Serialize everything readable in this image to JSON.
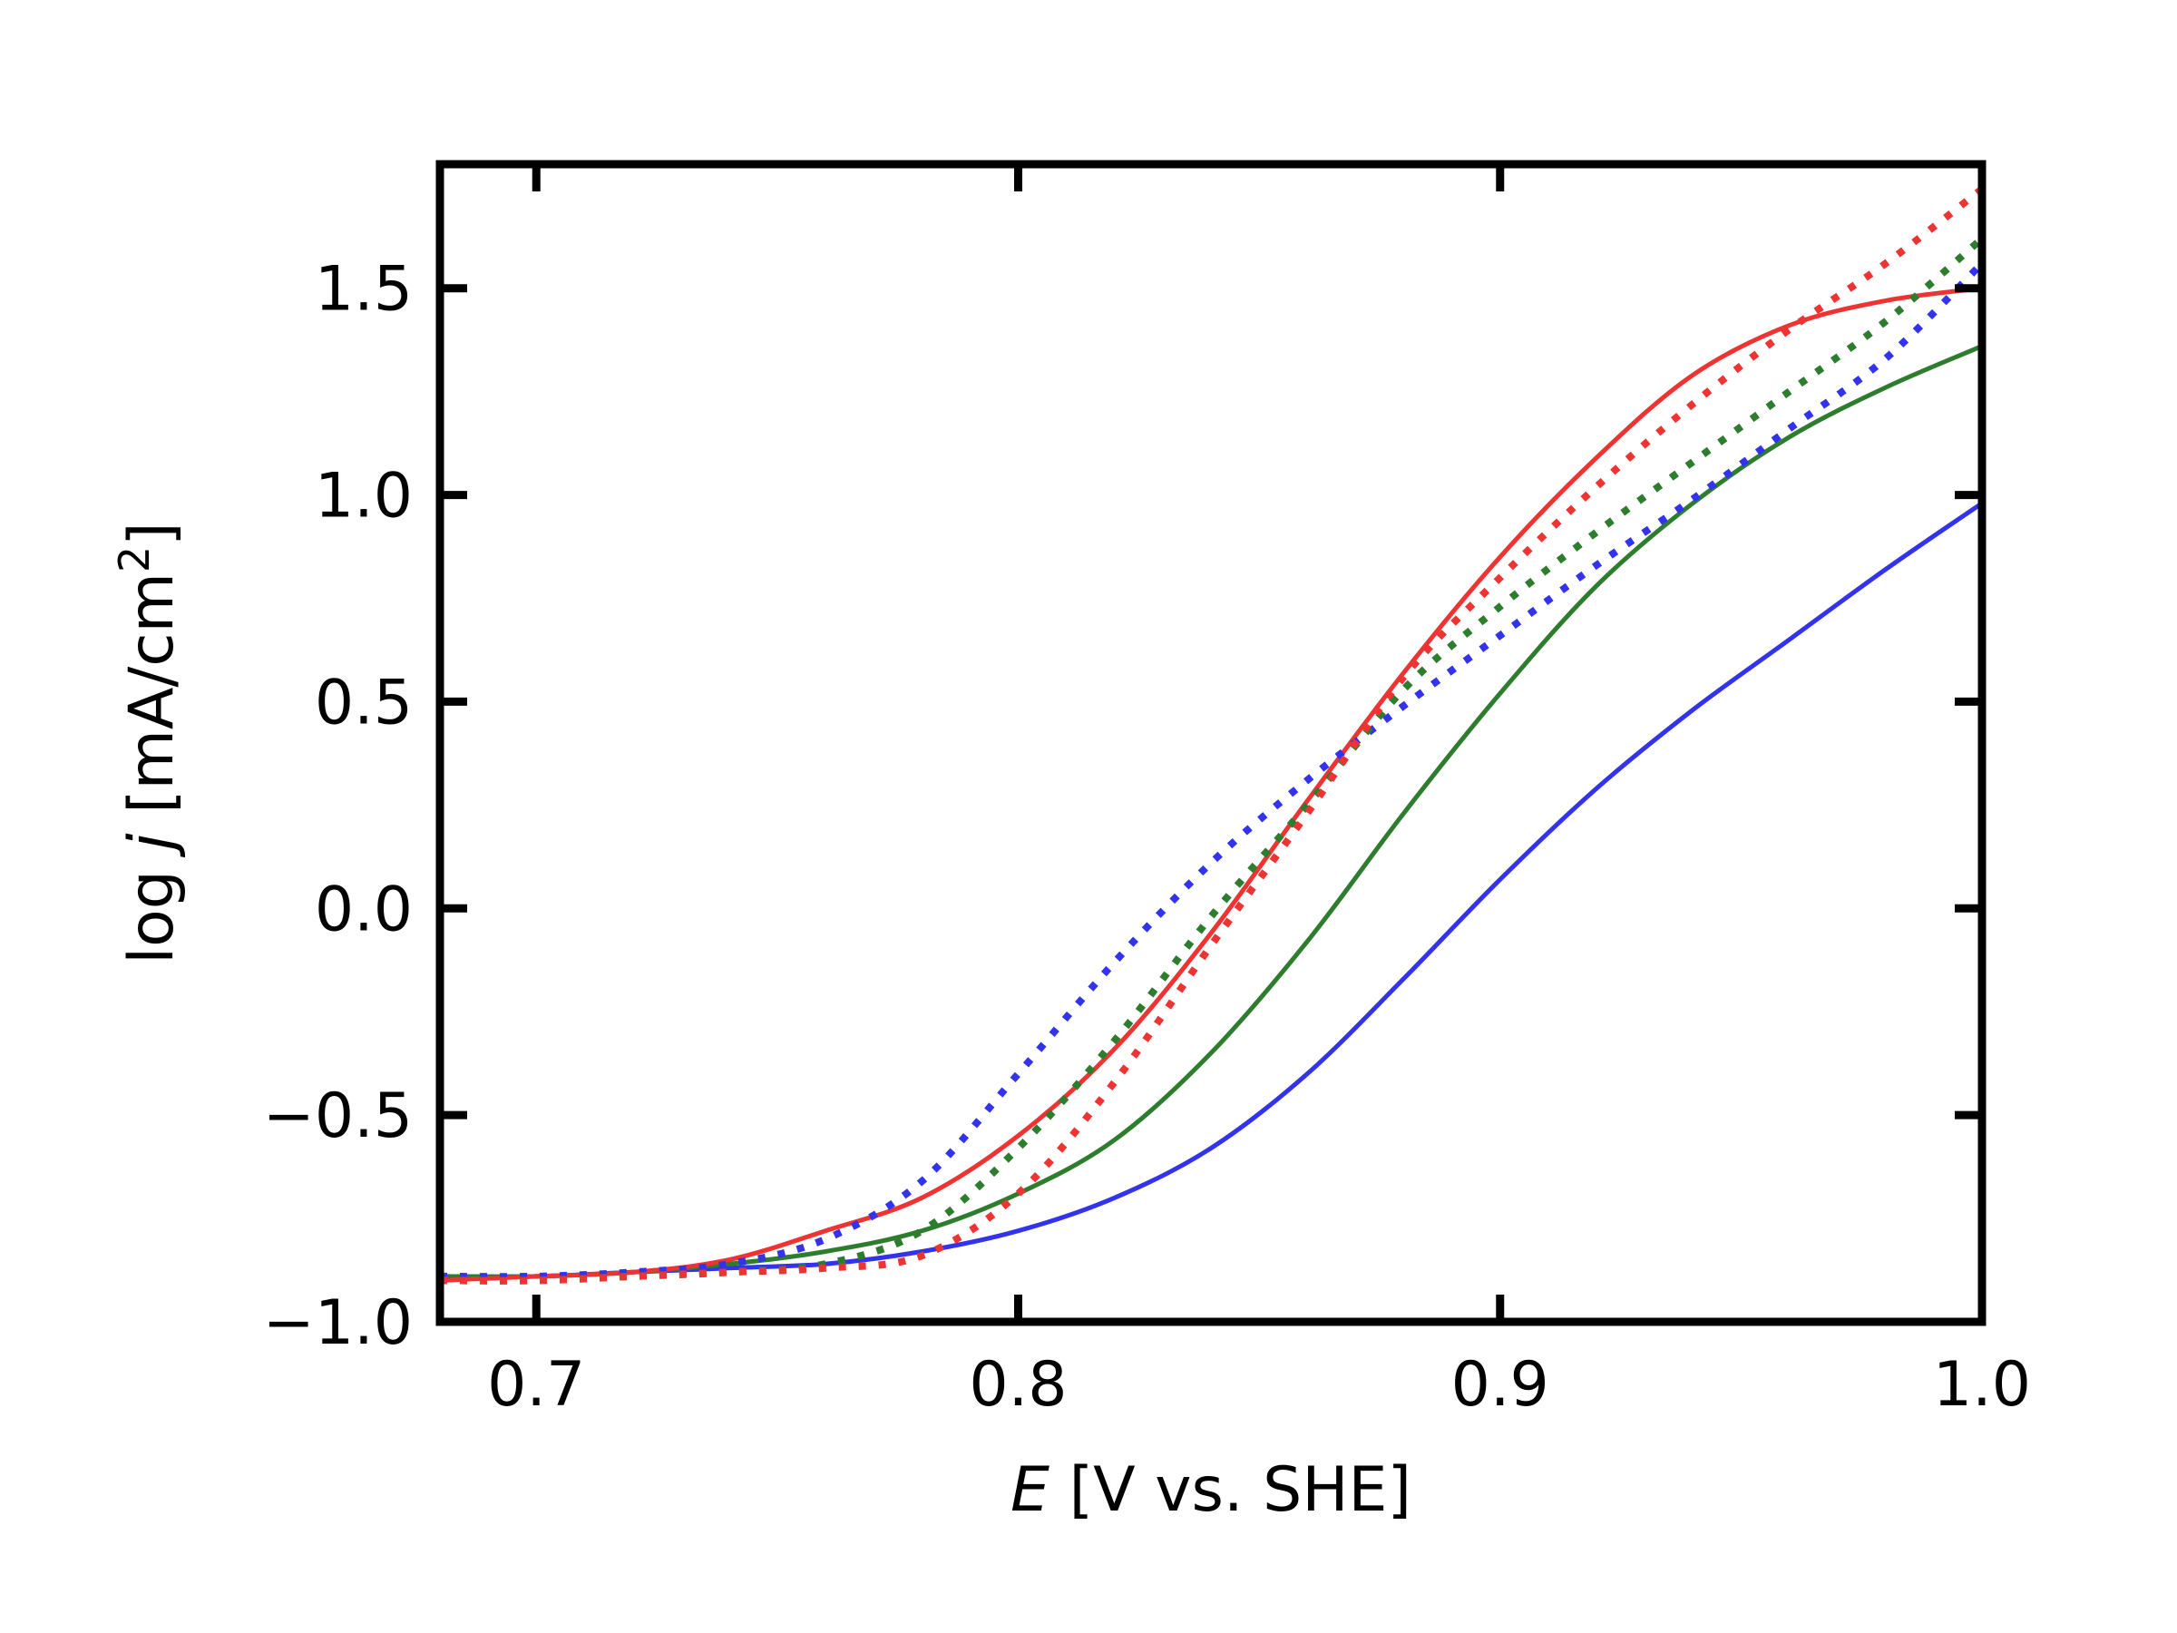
{
  "chart_data": {
    "type": "line",
    "xlabel": {
      "var": "E",
      "rest": " [V vs. SHE]"
    },
    "ylabel": {
      "prefix": "log ",
      "var": "j",
      "unit": " [mA/cm",
      "sup": "2",
      "close": "]"
    },
    "xlim": [
      0.68,
      1.0
    ],
    "ylim": [
      -1.0,
      1.8
    ],
    "xticks": [
      0.7,
      0.8,
      0.9,
      1.0
    ],
    "xtick_labels": [
      "0.7",
      "0.8",
      "0.9",
      "1.0"
    ],
    "yticks": [
      -1.0,
      -0.5,
      0.0,
      0.5,
      1.0,
      1.5
    ],
    "ytick_labels": [
      "−1.0",
      "−0.5",
      "0.0",
      "0.5",
      "1.0",
      "1.5"
    ],
    "grid": false,
    "legend": "none",
    "series": [
      {
        "color": "#3333ee",
        "style": "solid",
        "x": [
          0.68,
          0.7,
          0.72,
          0.74,
          0.76,
          0.78,
          0.8,
          0.82,
          0.84,
          0.86,
          0.88,
          0.9,
          0.92,
          0.94,
          0.96,
          0.98,
          1.0
        ],
        "y": [
          -0.89,
          -0.89,
          -0.88,
          -0.87,
          -0.86,
          -0.83,
          -0.78,
          -0.7,
          -0.58,
          -0.4,
          -0.17,
          0.07,
          0.29,
          0.48,
          0.65,
          0.82,
          0.98
        ]
      },
      {
        "color": "#2e7d2e",
        "style": "solid",
        "x": [
          0.68,
          0.7,
          0.72,
          0.74,
          0.76,
          0.78,
          0.8,
          0.82,
          0.84,
          0.86,
          0.88,
          0.9,
          0.92,
          0.94,
          0.96,
          0.98,
          1.0
        ],
        "y": [
          -0.89,
          -0.89,
          -0.88,
          -0.86,
          -0.83,
          -0.78,
          -0.69,
          -0.56,
          -0.35,
          -0.08,
          0.23,
          0.52,
          0.78,
          0.98,
          1.14,
          1.26,
          1.36
        ]
      },
      {
        "color": "#ee3333",
        "style": "solid",
        "x": [
          0.68,
          0.7,
          0.72,
          0.74,
          0.76,
          0.78,
          0.8,
          0.82,
          0.84,
          0.86,
          0.88,
          0.9,
          0.92,
          0.94,
          0.96,
          0.98,
          1.0
        ],
        "y": [
          -0.9,
          -0.89,
          -0.88,
          -0.85,
          -0.78,
          -0.7,
          -0.55,
          -0.34,
          -0.06,
          0.26,
          0.57,
          0.85,
          1.09,
          1.29,
          1.41,
          1.47,
          1.5
        ]
      },
      {
        "color": "#3333ee",
        "style": "dotted",
        "x": [
          0.68,
          0.7,
          0.72,
          0.74,
          0.76,
          0.78,
          0.8,
          0.82,
          0.84,
          0.86,
          0.88,
          0.9,
          0.92,
          0.94,
          0.96,
          0.98,
          1.0
        ],
        "y": [
          -0.89,
          -0.89,
          -0.88,
          -0.86,
          -0.8,
          -0.66,
          -0.4,
          -0.13,
          0.11,
          0.31,
          0.49,
          0.66,
          0.83,
          0.99,
          1.16,
          1.33,
          1.56
        ]
      },
      {
        "color": "#2e7d2e",
        "style": "dotted",
        "x": [
          0.68,
          0.7,
          0.72,
          0.74,
          0.76,
          0.78,
          0.8,
          0.82,
          0.84,
          0.86,
          0.88,
          0.9,
          0.92,
          0.94,
          0.96,
          0.98,
          1.0
        ],
        "y": [
          -0.9,
          -0.9,
          -0.89,
          -0.88,
          -0.86,
          -0.78,
          -0.58,
          -0.32,
          -0.02,
          0.25,
          0.53,
          0.73,
          0.91,
          1.08,
          1.25,
          1.42,
          1.62
        ]
      },
      {
        "color": "#ee3333",
        "style": "dotted",
        "x": [
          0.68,
          0.7,
          0.72,
          0.74,
          0.76,
          0.78,
          0.8,
          0.82,
          0.84,
          0.86,
          0.88,
          0.9,
          0.92,
          0.94,
          0.96,
          0.98,
          1.0
        ],
        "y": [
          -0.9,
          -0.9,
          -0.89,
          -0.88,
          -0.87,
          -0.84,
          -0.69,
          -0.42,
          -0.09,
          0.23,
          0.56,
          0.8,
          1.02,
          1.22,
          1.4,
          1.56,
          1.74
        ]
      }
    ]
  }
}
